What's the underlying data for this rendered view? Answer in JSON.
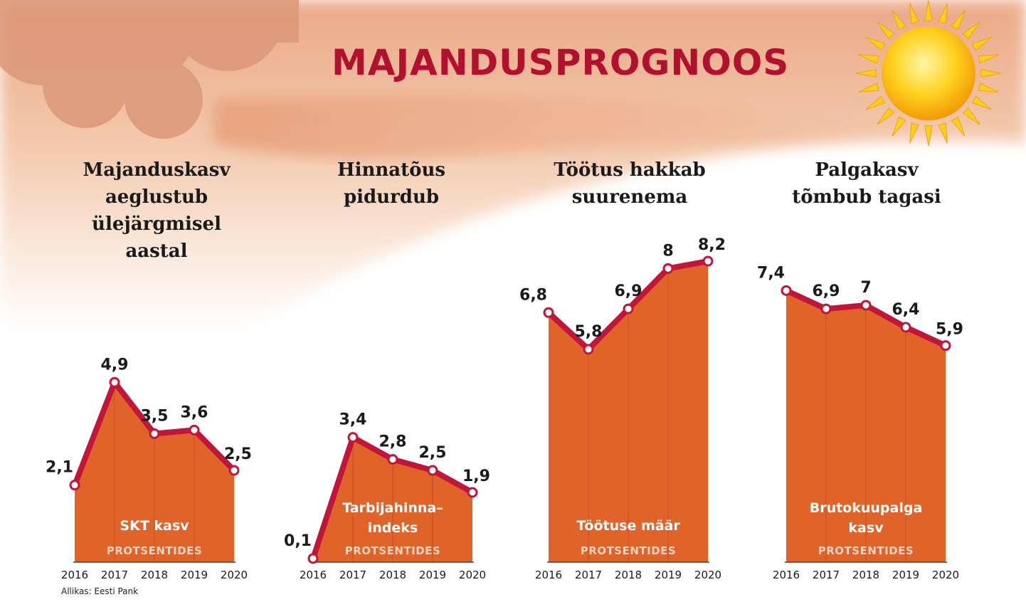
{
  "title": "MAJANDUSPROGNOOS",
  "source": "Allikas: Eesti Pank",
  "colors": {
    "title": "#b2102f",
    "area": "#e0642a",
    "line": "#c1163a",
    "marker_fill": "#ffffff"
  },
  "icons": [
    "sun-icon",
    "cloud-icon"
  ],
  "chart_data": [
    {
      "type": "area",
      "title": "Majanduskasv\naeglustub\nülejärgmisel\naastal",
      "series_label": "SKT kasv",
      "unit_label": "PROTSENTIDES",
      "categories": [
        "2016",
        "2017",
        "2018",
        "2019",
        "2020"
      ],
      "values": [
        2.1,
        4.9,
        3.5,
        3.6,
        2.5
      ],
      "value_labels": [
        "2,1",
        "4,9",
        "3,5",
        "3,6",
        "2,5"
      ],
      "ylim": [
        0,
        9.5
      ],
      "grid": false
    },
    {
      "type": "area",
      "title": "Hinnatõus\npidurdub",
      "series_label": "Tarbijahinna–\nindeks",
      "unit_label": "PROTSENTIDES",
      "categories": [
        "2016",
        "2017",
        "2018",
        "2019",
        "2020"
      ],
      "values": [
        0.1,
        3.4,
        2.8,
        2.5,
        1.9
      ],
      "value_labels": [
        "0,1",
        "3,4",
        "2,8",
        "2,5",
        "1,9"
      ],
      "ylim": [
        0,
        9.5
      ],
      "grid": false
    },
    {
      "type": "area",
      "title": "Töötus hakkab\nsuurenema",
      "series_label": "Töötuse määr",
      "unit_label": "PROTSENTIDES",
      "categories": [
        "2016",
        "2017",
        "2018",
        "2019",
        "2020"
      ],
      "values": [
        6.8,
        5.8,
        6.9,
        8,
        8.2
      ],
      "value_labels": [
        "6,8",
        "5,8",
        "6,9",
        "8",
        "8,2"
      ],
      "ylim": [
        0,
        9.5
      ],
      "grid": false
    },
    {
      "type": "area",
      "title": "Palgakasv\ntõmbub tagasi",
      "series_label": "Brutokuupalga\nkasv",
      "unit_label": "PROTSENTIDES",
      "categories": [
        "2016",
        "2017",
        "2018",
        "2019",
        "2020"
      ],
      "values": [
        7.4,
        6.9,
        7,
        6.4,
        5.9
      ],
      "value_labels": [
        "7,4",
        "6,9",
        "7",
        "6,4",
        "5,9"
      ],
      "ylim": [
        0,
        9.5
      ],
      "grid": false
    }
  ]
}
